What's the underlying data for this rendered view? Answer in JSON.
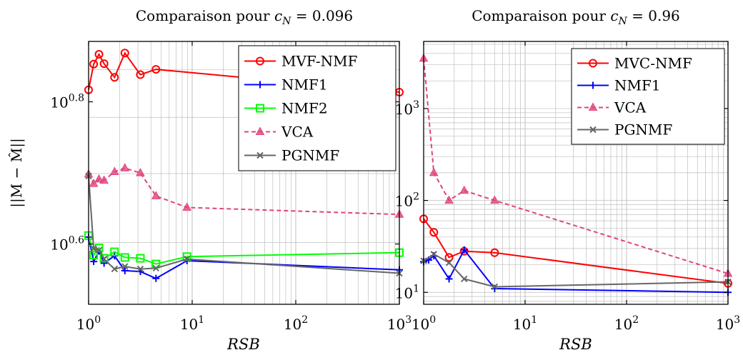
{
  "chart_data": [
    {
      "type": "line",
      "title": "Comparaison pour c_N = 0.096",
      "title_text": "Comparaison pour ",
      "title_var": "c",
      "title_sub": "N",
      "title_val": " = 0.096",
      "xlabel": "RSB",
      "ylabel": "||M − M̂||",
      "xscale": "log",
      "yscale": "log",
      "xlim": [
        1,
        1000
      ],
      "ylim_log10": [
        0.515,
        0.885
      ],
      "grid": true,
      "legend_position": "top-right",
      "x_tick_labels": [
        {
          "base": "10",
          "exp": "0",
          "value": 1
        },
        {
          "base": "10",
          "exp": "1",
          "value": 10
        },
        {
          "base": "10",
          "exp": "2",
          "value": 100
        },
        {
          "base": "10",
          "exp": "3",
          "value": 1000
        }
      ],
      "y_tick_labels": [
        {
          "base": "10",
          "exp": "0.6",
          "value": 3.98
        },
        {
          "base": "10",
          "exp": "0.8",
          "value": 6.31
        }
      ],
      "series": [
        {
          "name": "MVF-NMF",
          "color": "#ff0000",
          "marker": "circle",
          "dash": "",
          "x": [
            1,
            1.12,
            1.26,
            1.41,
            1.78,
            2.24,
            3.16,
            4.47,
            1000
          ],
          "y": [
            6.56,
            7.13,
            7.36,
            7.14,
            6.83,
            7.39,
            6.89,
            7.01,
            6.51
          ]
        },
        {
          "name": "NMF1",
          "color": "#0000ff",
          "marker": "plus",
          "dash": "",
          "x": [
            1,
            1.12,
            1.26,
            1.41,
            1.78,
            2.24,
            3.16,
            4.47,
            8.91,
            1000
          ],
          "y": [
            4.07,
            3.76,
            3.89,
            3.74,
            3.83,
            3.65,
            3.64,
            3.56,
            3.77,
            3.66
          ]
        },
        {
          "name": "NMF2",
          "color": "#00ff00",
          "marker": "square",
          "dash": "",
          "x": [
            1,
            1.12,
            1.26,
            1.41,
            1.78,
            2.24,
            3.16,
            4.47,
            8.91,
            1000
          ],
          "y": [
            4.09,
            3.84,
            3.93,
            3.8,
            3.88,
            3.81,
            3.8,
            3.73,
            3.82,
            3.87
          ]
        },
        {
          "name": "VCA",
          "color": "#e0447e",
          "marker": "triangle",
          "dash": "6,4",
          "x": [
            1,
            1.12,
            1.26,
            1.41,
            1.78,
            2.24,
            3.16,
            4.47,
            8.91,
            1000
          ],
          "y": [
            4.99,
            4.84,
            4.91,
            4.89,
            5.03,
            5.09,
            5.01,
            4.65,
            4.48,
            4.38
          ]
        },
        {
          "name": "PGNMF",
          "color": "#666666",
          "marker": "cross",
          "dash": "",
          "x": [
            1,
            1.12,
            1.26,
            1.41,
            1.78,
            2.24,
            3.16,
            4.47,
            8.91,
            1000
          ],
          "y": [
            4.96,
            3.92,
            3.9,
            3.79,
            3.67,
            3.7,
            3.67,
            3.68,
            3.79,
            3.62
          ]
        }
      ],
      "legend_order": [
        "MVF-NMF",
        "NMF1",
        "NMF2",
        "VCA",
        "PGNMF"
      ]
    },
    {
      "type": "line",
      "title": "Comparaison pour c_N = 0.96",
      "title_text": "Comparaison pour ",
      "title_var": "c",
      "title_sub": "N",
      "title_val": " = 0.96",
      "xlabel": "RSB",
      "xscale": "log",
      "yscale": "log",
      "xlim": [
        1,
        1000
      ],
      "ylim_log10": [
        0.87,
        3.73
      ],
      "grid": true,
      "legend_position": "top-right",
      "x_tick_labels": [
        {
          "base": "10",
          "exp": "0",
          "value": 1
        },
        {
          "base": "10",
          "exp": "1",
          "value": 10
        },
        {
          "base": "10",
          "exp": "2",
          "value": 100
        },
        {
          "base": "10",
          "exp": "3",
          "value": 1000
        }
      ],
      "y_tick_labels": [
        {
          "base": "10",
          "exp": "1",
          "value": 10
        },
        {
          "base": "10",
          "exp": "2",
          "value": 100
        },
        {
          "base": "10",
          "exp": "3",
          "value": 1000
        }
      ],
      "series": [
        {
          "name": "MVC-NMF",
          "color": "#ff0000",
          "marker": "circle",
          "dash": "",
          "x": [
            1,
            1.26,
            1.78,
            2.51,
            5.01,
            1000
          ],
          "y": [
            63,
            45,
            24,
            28,
            27,
            12.5
          ]
        },
        {
          "name": "NMF1",
          "color": "#0000ff",
          "marker": "plus",
          "dash": "",
          "x": [
            1,
            1.12,
            1.26,
            1.78,
            2.51,
            5.01,
            1000
          ],
          "y": [
            21.5,
            22.5,
            25,
            14,
            29,
            11,
            10
          ]
        },
        {
          "name": "VCA",
          "color": "#e0447e",
          "marker": "triangle",
          "dash": "6,4",
          "x": [
            1,
            1.26,
            1.78,
            2.51,
            5.01,
            1000
          ],
          "y": [
            3500,
            200,
            100,
            128,
            100,
            16
          ]
        },
        {
          "name": "PGNMF",
          "color": "#666666",
          "marker": "cross",
          "dash": "",
          "x": [
            1,
            1.26,
            1.78,
            2.51,
            5.01,
            1000
          ],
          "y": [
            22,
            26,
            21,
            14,
            11.5,
            13
          ]
        }
      ],
      "legend_order": [
        "MVC-NMF",
        "NMF1",
        "VCA",
        "PGNMF"
      ]
    }
  ]
}
